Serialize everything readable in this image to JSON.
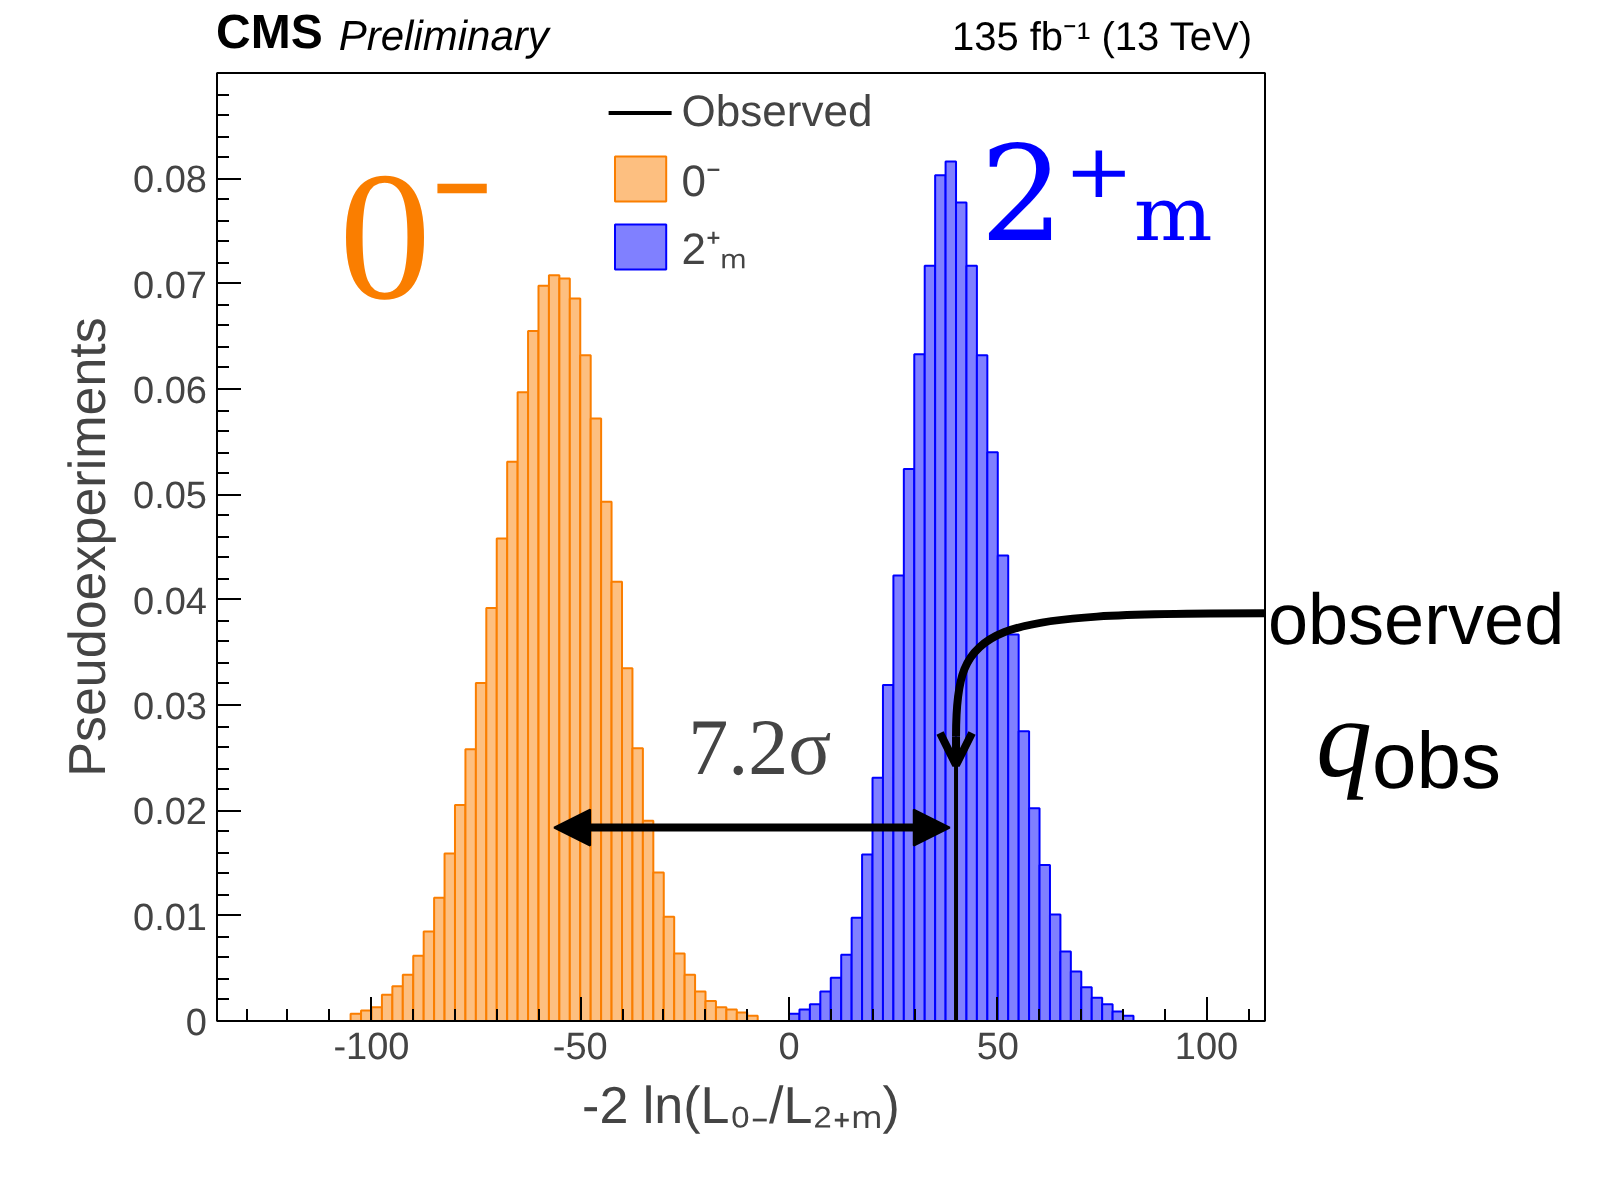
{
  "chart_data": {
    "type": "histogram",
    "title": "CMS",
    "subtitle": "Preliminary",
    "xlabel": "-2 ln(L₀₋/L₂₊ₘ)",
    "ylabel": "Pseudoexperiments",
    "xlim": [
      -137,
      114
    ],
    "ylim": [
      0,
      0.09
    ],
    "xticks": [
      -100,
      -50,
      0,
      50,
      100
    ],
    "yticks": [
      0,
      0.01,
      0.02,
      0.03,
      0.04,
      0.05,
      0.06,
      0.07,
      0.08
    ],
    "grid": false,
    "legend": "top",
    "series": [
      {
        "name": "Observed",
        "type": "line",
        "color": "#000000",
        "x": [
          40,
          40
        ],
        "values": [
          0,
          0.0243
        ]
      },
      {
        "name": "0⁻",
        "color": "#fdbf80",
        "bins": [
          -105,
          -102.5,
          -100,
          -97.5,
          -95,
          -92.5,
          -90,
          -87.5,
          -85,
          -82.5,
          -80,
          -77.5,
          -75,
          -72.5,
          -70,
          -67.5,
          -65,
          -62.5,
          -60,
          -57.5,
          -55,
          -52.5,
          -50,
          -47.5,
          -45,
          -42.5,
          -40,
          -37.5,
          -35,
          -32.5,
          -30,
          -27.5,
          -25,
          -22.5,
          -20,
          -17.5,
          -15,
          -12.5,
          -10,
          -7.5
        ],
        "values": [
          0.0007,
          0.001,
          0.0013,
          0.0025,
          0.0033,
          0.0044,
          0.0062,
          0.0085,
          0.0117,
          0.0159,
          0.0205,
          0.0258,
          0.0321,
          0.0392,
          0.0458,
          0.0531,
          0.0597,
          0.0655,
          0.0698,
          0.0708,
          0.0705,
          0.0686,
          0.0632,
          0.0572,
          0.0493,
          0.0417,
          0.0335,
          0.0259,
          0.019,
          0.0141,
          0.0099,
          0.0064,
          0.0044,
          0.0028,
          0.0019,
          0.0013,
          0.0011,
          0.0008,
          0.0005
        ]
      },
      {
        "name": "2⁺ₘ",
        "color": "#8080ff",
        "bins": [
          0,
          2.5,
          5,
          7.5,
          10,
          12.5,
          15,
          17.5,
          20,
          22.5,
          25,
          27.5,
          30,
          32.5,
          35,
          37.5,
          40,
          42.5,
          45,
          47.5,
          50,
          52.5,
          55,
          57.5,
          60,
          62.5,
          65,
          67.5,
          70,
          72.5,
          75,
          77.5,
          80,
          82.5
        ],
        "values": [
          0.0007,
          0.0011,
          0.0016,
          0.0028,
          0.0041,
          0.0063,
          0.0098,
          0.0158,
          0.0231,
          0.0319,
          0.0423,
          0.0524,
          0.0633,
          0.0717,
          0.0803,
          0.0816,
          0.0777,
          0.0717,
          0.0632,
          0.054,
          0.0442,
          0.0367,
          0.0275,
          0.0202,
          0.0148,
          0.0101,
          0.0066,
          0.0047,
          0.0032,
          0.0022,
          0.0016,
          0.0009,
          0.0005
        ]
      }
    ],
    "annotations": [
      "135 fb⁻¹ (13 TeV)",
      "0⁻",
      "2⁺ₘ",
      "7.2σ",
      {
        "text": "observed q$_{obs}$",
        "x": 40,
        "y": 0.0243
      }
    ]
  }
}
